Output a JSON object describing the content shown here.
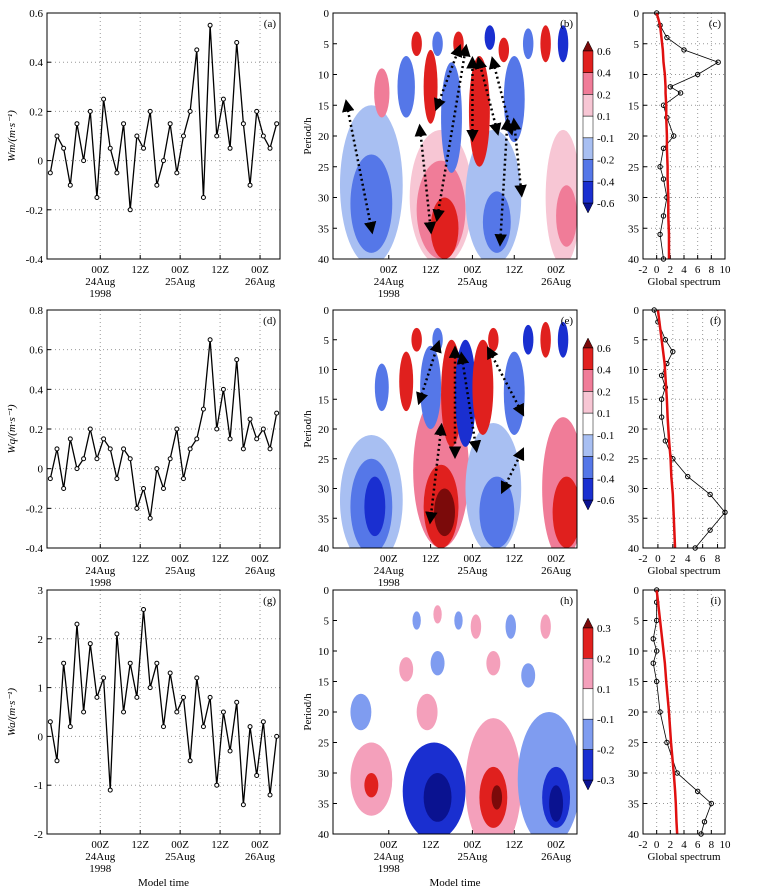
{
  "chart_data": [
    {
      "type": "line",
      "label": "(a)",
      "ylabel": "Wm/(m·s⁻¹)",
      "color": "#000000",
      "grid": true,
      "x": [
        -15,
        -13,
        -11,
        -9,
        -7,
        -5,
        -3,
        -1,
        1,
        3,
        5,
        7,
        9,
        11,
        13,
        15,
        17,
        19,
        21,
        23,
        25,
        27,
        29,
        31,
        33,
        35,
        37,
        39,
        41,
        43,
        45,
        47,
        49,
        51,
        53
      ],
      "values": [
        -0.05,
        0.1,
        0.05,
        -0.1,
        0.15,
        0,
        0.2,
        -0.15,
        0.25,
        0.05,
        -0.05,
        0.15,
        -0.2,
        0.1,
        0.05,
        0.2,
        -0.1,
        0,
        0.15,
        -0.05,
        0.1,
        0.2,
        0.45,
        -0.15,
        0.55,
        0.1,
        0.25,
        0.05,
        0.48,
        0.15,
        -0.1,
        0.2,
        0.1,
        0.05,
        0.15
      ],
      "xlim": [
        -16,
        54
      ],
      "ylim": [
        -0.4,
        0.6
      ],
      "xticks": [
        {
          "value": 0,
          "label": "00Z\n24Aug\n1998"
        },
        {
          "value": 12,
          "label": "12Z"
        },
        {
          "value": 24,
          "label": "00Z\n25Aug"
        },
        {
          "value": 36,
          "label": "12Z"
        },
        {
          "value": 48,
          "label": "00Z\n26Aug"
        }
      ],
      "yticks": [
        -0.4,
        -0.2,
        0,
        0.2,
        0.4,
        0.6
      ]
    },
    {
      "type": "contour",
      "label": "(b)",
      "ylabel": "Period/h",
      "xlim": [
        -16,
        54
      ],
      "ylim": [
        0,
        40
      ],
      "xticks": [
        {
          "value": 0,
          "label": "00Z\n24Aug\n1998"
        },
        {
          "value": 12,
          "label": "12Z"
        },
        {
          "value": 24,
          "label": "00Z\n25Aug"
        },
        {
          "value": 36,
          "label": "12Z"
        },
        {
          "value": 48,
          "label": "00Z\n26Aug"
        }
      ],
      "yticks": [
        0,
        5,
        10,
        15,
        20,
        25,
        30,
        35,
        40
      ],
      "levels": [
        0.6,
        0.4,
        0.2,
        0.1,
        -0.1,
        -0.2,
        -0.4,
        -0.6
      ],
      "colors": [
        "#7b0a0a",
        "#e0201e",
        "#f07c98",
        "#f7c6d4",
        "#ffffff",
        "#a8bff2",
        "#5577e8",
        "#1a2fd0",
        "#0a1290"
      ]
    },
    {
      "type": "profile",
      "label": "(c)",
      "xlabel": "Global spectrum",
      "color": "#000000",
      "signif_color": "#e01010",
      "grid": true,
      "y": [
        0,
        2,
        4,
        6,
        8,
        10,
        12,
        13,
        15,
        17,
        20,
        22,
        25,
        27,
        30,
        33,
        36,
        40
      ],
      "values": [
        0,
        0.5,
        1.5,
        4,
        9,
        6,
        2,
        3.5,
        1,
        1.5,
        2.5,
        1,
        0.5,
        1,
        1.5,
        1,
        0.5,
        1
      ],
      "signif": [
        0,
        0.5,
        0.7,
        0.9,
        1,
        1.2,
        1.3,
        1.3,
        1.4,
        1.4,
        1.5,
        1.5,
        1.6,
        1.6,
        1.7,
        1.7,
        1.8,
        1.8
      ],
      "xlim": [
        -2,
        10
      ],
      "ylim": [
        0,
        40
      ],
      "xticks": [
        -2,
        0,
        2,
        4,
        6,
        8,
        10
      ],
      "yticks": [
        0,
        5,
        10,
        15,
        20,
        25,
        30,
        35,
        40
      ]
    },
    {
      "type": "line",
      "label": "(d)",
      "ylabel": "Wq/(m·s⁻¹)",
      "color": "#000000",
      "grid": true,
      "x": [
        -15,
        -13,
        -11,
        -9,
        -7,
        -5,
        -3,
        -1,
        1,
        3,
        5,
        7,
        9,
        11,
        13,
        15,
        17,
        19,
        21,
        23,
        25,
        27,
        29,
        31,
        33,
        35,
        37,
        39,
        41,
        43,
        45,
        47,
        49,
        51,
        53
      ],
      "values": [
        -0.05,
        0.1,
        -0.1,
        0.15,
        0,
        0.05,
        0.2,
        0.05,
        0.15,
        0.1,
        -0.05,
        0.1,
        0.05,
        -0.2,
        -0.1,
        -0.25,
        0,
        -0.1,
        0.05,
        0.2,
        -0.05,
        0.1,
        0.15,
        0.3,
        0.65,
        0.2,
        0.4,
        0.15,
        0.55,
        0.1,
        0.25,
        0.15,
        0.2,
        0.1,
        0.28
      ],
      "xlim": [
        -16,
        54
      ],
      "ylim": [
        -0.4,
        0.8
      ],
      "xticks": [
        {
          "value": 0,
          "label": "00Z\n24Aug\n1998"
        },
        {
          "value": 12,
          "label": "12Z"
        },
        {
          "value": 24,
          "label": "00Z\n25Aug"
        },
        {
          "value": 36,
          "label": "12Z"
        },
        {
          "value": 48,
          "label": "00Z\n26Aug"
        }
      ],
      "yticks": [
        -0.4,
        -0.2,
        0,
        0.2,
        0.4,
        0.6,
        0.8
      ]
    },
    {
      "type": "contour",
      "label": "(e)",
      "ylabel": "Period/h",
      "xlim": [
        -16,
        54
      ],
      "ylim": [
        0,
        40
      ],
      "xticks": [
        {
          "value": 0,
          "label": "00Z\n24Aug\n1998"
        },
        {
          "value": 12,
          "label": "12Z"
        },
        {
          "value": 24,
          "label": "00Z\n25Aug"
        },
        {
          "value": 36,
          "label": "12Z"
        },
        {
          "value": 48,
          "label": "00Z\n26Aug"
        }
      ],
      "yticks": [
        0,
        5,
        10,
        15,
        20,
        25,
        30,
        35,
        40
      ],
      "levels": [
        0.6,
        0.4,
        0.2,
        0.1,
        -0.1,
        -0.2,
        -0.4,
        -0.6
      ],
      "colors": [
        "#7b0a0a",
        "#e0201e",
        "#f07c98",
        "#f7c6d4",
        "#ffffff",
        "#a8bff2",
        "#5577e8",
        "#1a2fd0",
        "#0a1290"
      ]
    },
    {
      "type": "profile",
      "label": "(f)",
      "xlabel": "Global spectrum",
      "color": "#000000",
      "signif_color": "#e01010",
      "grid": true,
      "y": [
        0,
        2,
        5,
        7,
        9,
        11,
        13,
        15,
        18,
        22,
        25,
        28,
        31,
        34,
        37,
        40
      ],
      "values": [
        -0.5,
        0,
        1,
        2,
        1.2,
        0.5,
        1,
        0.5,
        0.5,
        1,
        2,
        4,
        7,
        9,
        7,
        5
      ],
      "signif": [
        0,
        0.2,
        0.5,
        0.7,
        0.9,
        1,
        1.1,
        1.2,
        1.3,
        1.5,
        1.7,
        1.8,
        2,
        2.1,
        2.2,
        2.3
      ],
      "xlim": [
        -2,
        9
      ],
      "ylim": [
        0,
        40
      ],
      "xticks": [
        -2,
        0,
        2,
        4,
        6,
        8
      ],
      "yticks": [
        0,
        5,
        10,
        15,
        20,
        25,
        30,
        35,
        40
      ]
    },
    {
      "type": "line",
      "label": "(g)",
      "ylabel": "Wa/(m·s⁻¹)",
      "xlabel": "Model time",
      "color": "#000000",
      "grid": true,
      "x": [
        -15,
        -13,
        -11,
        -9,
        -7,
        -5,
        -3,
        -1,
        1,
        3,
        5,
        7,
        9,
        11,
        13,
        15,
        17,
        19,
        21,
        23,
        25,
        27,
        29,
        31,
        33,
        35,
        37,
        39,
        41,
        43,
        45,
        47,
        49,
        51,
        53
      ],
      "values": [
        0.3,
        -0.5,
        1.5,
        0.2,
        2.3,
        0.5,
        1.9,
        0.8,
        1.2,
        -1.1,
        2.1,
        0.5,
        1.5,
        0.8,
        2.6,
        1,
        1.5,
        0.2,
        1.3,
        0.5,
        0.8,
        -0.5,
        1.2,
        0.2,
        0.8,
        -1,
        0.5,
        -0.3,
        0.7,
        -1.4,
        0.2,
        -0.8,
        0.3,
        -1.2,
        0
      ],
      "xlim": [
        -16,
        54
      ],
      "ylim": [
        -2,
        3
      ],
      "xticks": [
        {
          "value": 0,
          "label": "00Z\n24Aug\n1998"
        },
        {
          "value": 12,
          "label": "12Z"
        },
        {
          "value": 24,
          "label": "00Z\n25Aug"
        },
        {
          "value": 36,
          "label": "12Z"
        },
        {
          "value": 48,
          "label": "00Z\n26Aug"
        }
      ],
      "yticks": [
        -2,
        -1,
        0,
        1,
        2,
        3
      ]
    },
    {
      "type": "contour",
      "label": "(h)",
      "ylabel": "Period/h",
      "xlabel": "Model time",
      "xlim": [
        -16,
        54
      ],
      "ylim": [
        0,
        40
      ],
      "xticks": [
        {
          "value": 0,
          "label": "00Z\n24Aug\n1998"
        },
        {
          "value": 12,
          "label": "12Z"
        },
        {
          "value": 24,
          "label": "00Z\n25Aug"
        },
        {
          "value": 36,
          "label": "12Z"
        },
        {
          "value": 48,
          "label": "00Z\n26Aug"
        }
      ],
      "yticks": [
        0,
        5,
        10,
        15,
        20,
        25,
        30,
        35,
        40
      ],
      "levels": [
        0.3,
        0.2,
        0.1,
        -0.1,
        -0.2,
        -0.3
      ],
      "colors": [
        "#7b0a0a",
        "#e0201e",
        "#f4a0bb",
        "#ffffff",
        "#7f9cf0",
        "#1a2fd0",
        "#0a1290"
      ]
    },
    {
      "type": "profile",
      "label": "(i)",
      "xlabel": "Global spectrum",
      "color": "#000000",
      "signif_color": "#e01010",
      "grid": true,
      "y": [
        0,
        2,
        5,
        8,
        10,
        12,
        15,
        20,
        25,
        30,
        33,
        35,
        38,
        40
      ],
      "values": [
        0,
        0,
        0,
        -0.5,
        0,
        -0.5,
        0,
        0.5,
        1.5,
        3,
        6,
        8,
        7,
        6.5
      ],
      "signif": [
        0,
        0.2,
        0.5,
        0.8,
        1,
        1.2,
        1.4,
        1.8,
        2.1,
        2.5,
        2.7,
        2.8,
        2.9,
        3
      ],
      "xlim": [
        -2,
        10
      ],
      "ylim": [
        0,
        40
      ],
      "xticks": [
        -2,
        0,
        2,
        4,
        6,
        8,
        10
      ],
      "yticks": [
        0,
        5,
        10,
        15,
        20,
        25,
        30,
        35,
        40
      ]
    }
  ]
}
